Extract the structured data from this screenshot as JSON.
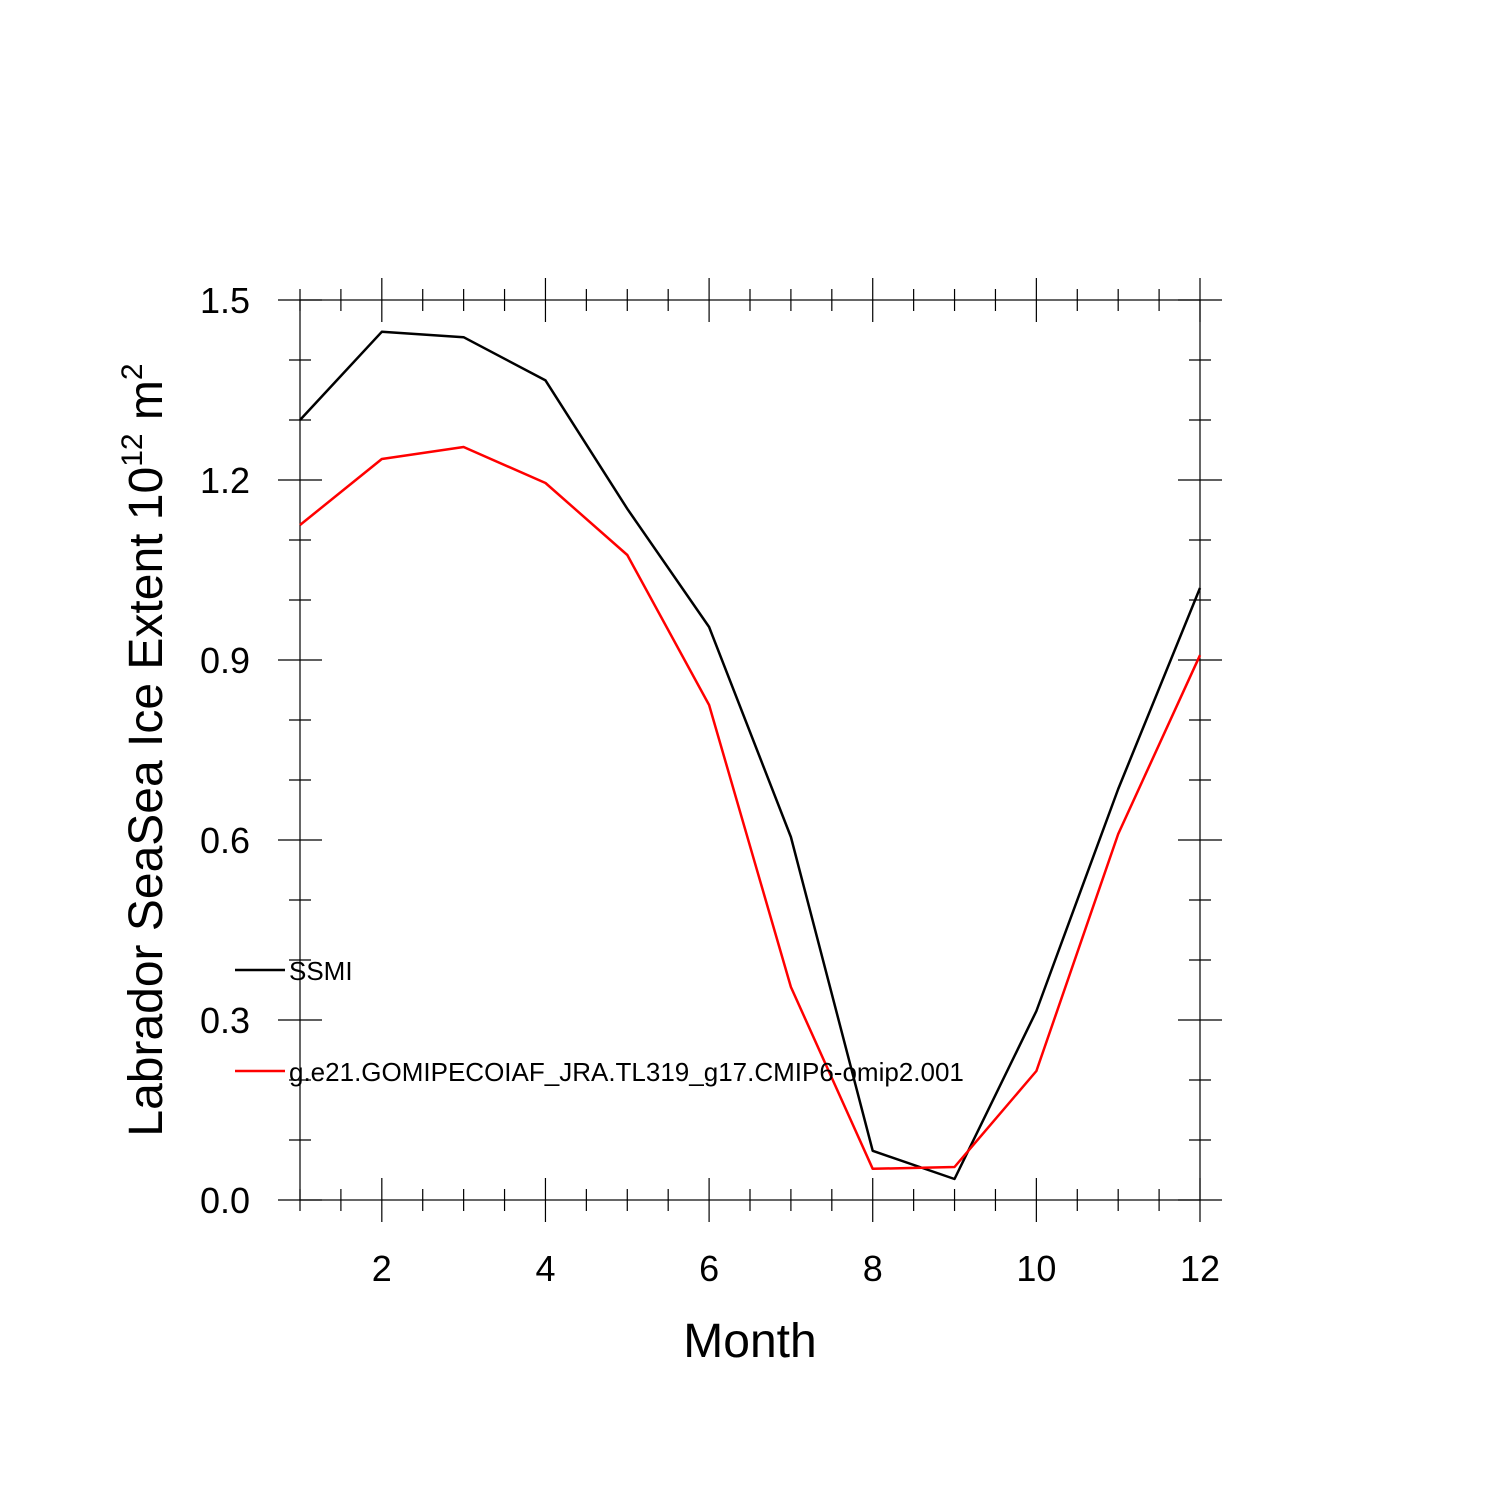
{
  "chart_data": {
    "type": "line",
    "xlabel": "Month",
    "ylabel": "Labrador SeaSea Ice Extent 10",
    "ylabel_superscript": "12",
    "ylabel_unit": " m",
    "ylabel_unit_superscript": "2",
    "xlim": [
      1,
      12
    ],
    "ylim": [
      0.0,
      1.5
    ],
    "x_ticks": [
      2,
      4,
      6,
      8,
      10,
      12
    ],
    "x_tick_labels": [
      "2",
      "4",
      "6",
      "8",
      "10",
      "12"
    ],
    "y_ticks": [
      0.0,
      0.3,
      0.6,
      0.9,
      1.2,
      1.5
    ],
    "y_tick_labels": [
      "0.0",
      "0.3",
      "0.6",
      "0.9",
      "1.2",
      "1.5"
    ],
    "grid": false,
    "legend_position": "lower-left",
    "x": [
      1,
      2,
      3,
      4,
      5,
      6,
      7,
      8,
      9,
      10,
      11,
      12
    ],
    "series": [
      {
        "name": "SSMI",
        "color": "#000000",
        "values": [
          1.3,
          1.447,
          1.438,
          1.366,
          1.152,
          0.955,
          0.605,
          0.082,
          0.035,
          0.315,
          0.685,
          1.02
        ]
      },
      {
        "name": "g.e21.GOMIPECOIAF_JRA.TL319_g17.CMIP6-omip2.001",
        "color": "#ff0000",
        "values": [
          1.125,
          1.235,
          1.255,
          1.195,
          1.075,
          0.825,
          0.355,
          0.052,
          0.055,
          0.215,
          0.61,
          0.908
        ]
      }
    ]
  }
}
